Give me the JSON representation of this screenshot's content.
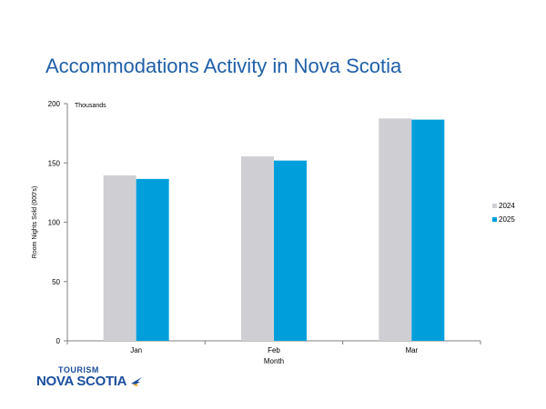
{
  "chart_data": {
    "type": "bar",
    "title": "Accommodations Activity in Nova Scotia",
    "unit_label": "Thousands",
    "xlabel": "Month",
    "ylabel": "Room Nights Sold (000's)",
    "categories": [
      "Jan",
      "Feb",
      "Mar"
    ],
    "series": [
      {
        "name": "2024",
        "values": [
          139.5,
          155.5,
          187.5
        ],
        "color": "#cfcfd3"
      },
      {
        "name": "2025",
        "values": [
          136.5,
          152,
          186.5
        ],
        "color": "#009fdb"
      }
    ],
    "ylim": [
      0,
      200
    ],
    "yticks": [
      0,
      50,
      100,
      150,
      200
    ],
    "grid": false,
    "legend": "right"
  },
  "logo": {
    "line1": "TOURISM",
    "line2": "NOVA SCOTIA",
    "icon": "bird-icon",
    "color": "#1a4e9c"
  }
}
